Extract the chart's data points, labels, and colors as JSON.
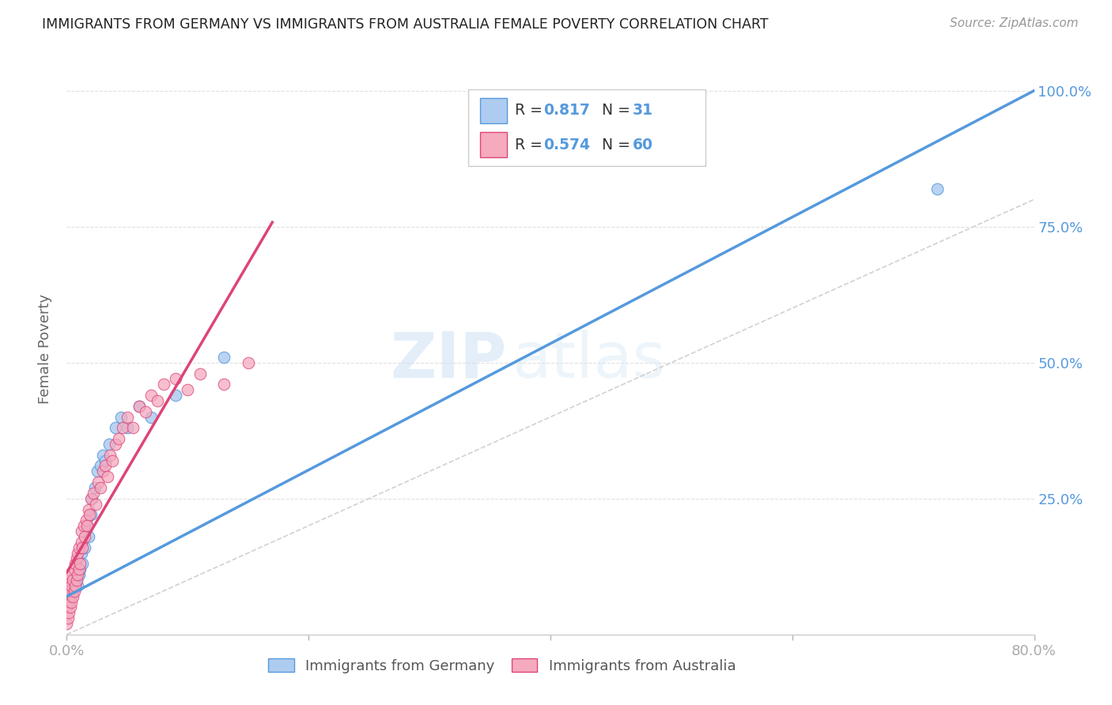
{
  "title": "IMMIGRANTS FROM GERMANY VS IMMIGRANTS FROM AUSTRALIA FEMALE POVERTY CORRELATION CHART",
  "source": "Source: ZipAtlas.com",
  "ylabel": "Female Poverty",
  "watermark_zip": "ZIP",
  "watermark_atlas": "atlas",
  "germany_R": 0.817,
  "germany_N": 31,
  "australia_R": 0.574,
  "australia_N": 60,
  "germany_color": "#aeccf0",
  "australia_color": "#f5aabe",
  "germany_line_color": "#5599dd",
  "australia_line_color": "#dd4477",
  "diagonal_color": "#cccccc",
  "background_color": "#ffffff",
  "germany_x": [
    0.002,
    0.003,
    0.004,
    0.005,
    0.006,
    0.007,
    0.008,
    0.009,
    0.01,
    0.011,
    0.012,
    0.013,
    0.015,
    0.017,
    0.018,
    0.02,
    0.021,
    0.023,
    0.025,
    0.028,
    0.03,
    0.032,
    0.035,
    0.04,
    0.045,
    0.05,
    0.06,
    0.07,
    0.09,
    0.13,
    0.72
  ],
  "germany_y": [
    0.06,
    0.07,
    0.08,
    0.075,
    0.085,
    0.095,
    0.1,
    0.09,
    0.11,
    0.12,
    0.15,
    0.13,
    0.16,
    0.2,
    0.18,
    0.22,
    0.25,
    0.27,
    0.3,
    0.31,
    0.33,
    0.32,
    0.35,
    0.38,
    0.4,
    0.38,
    0.42,
    0.4,
    0.44,
    0.51,
    0.82
  ],
  "australia_x": [
    0.0,
    0.0,
    0.001,
    0.001,
    0.001,
    0.002,
    0.002,
    0.002,
    0.003,
    0.003,
    0.003,
    0.004,
    0.004,
    0.005,
    0.005,
    0.006,
    0.006,
    0.007,
    0.007,
    0.008,
    0.008,
    0.009,
    0.009,
    0.01,
    0.01,
    0.011,
    0.012,
    0.012,
    0.013,
    0.014,
    0.015,
    0.016,
    0.017,
    0.018,
    0.019,
    0.02,
    0.022,
    0.024,
    0.026,
    0.028,
    0.03,
    0.032,
    0.034,
    0.036,
    0.038,
    0.04,
    0.043,
    0.046,
    0.05,
    0.055,
    0.06,
    0.065,
    0.07,
    0.075,
    0.08,
    0.09,
    0.1,
    0.11,
    0.13,
    0.15
  ],
  "australia_y": [
    0.02,
    0.05,
    0.03,
    0.06,
    0.08,
    0.04,
    0.07,
    0.1,
    0.05,
    0.08,
    0.11,
    0.06,
    0.09,
    0.07,
    0.1,
    0.08,
    0.12,
    0.09,
    0.13,
    0.1,
    0.14,
    0.11,
    0.15,
    0.12,
    0.16,
    0.13,
    0.17,
    0.19,
    0.16,
    0.2,
    0.18,
    0.21,
    0.2,
    0.23,
    0.22,
    0.25,
    0.26,
    0.24,
    0.28,
    0.27,
    0.3,
    0.31,
    0.29,
    0.33,
    0.32,
    0.35,
    0.36,
    0.38,
    0.4,
    0.38,
    0.42,
    0.41,
    0.44,
    0.43,
    0.46,
    0.47,
    0.45,
    0.48,
    0.46,
    0.5
  ],
  "xlim": [
    0.0,
    0.8
  ],
  "ylim": [
    0.0,
    1.05
  ],
  "grid_color": "#e0e0e0",
  "legend_R_N_color": "#5599dd",
  "legend_label_color": "#333333"
}
